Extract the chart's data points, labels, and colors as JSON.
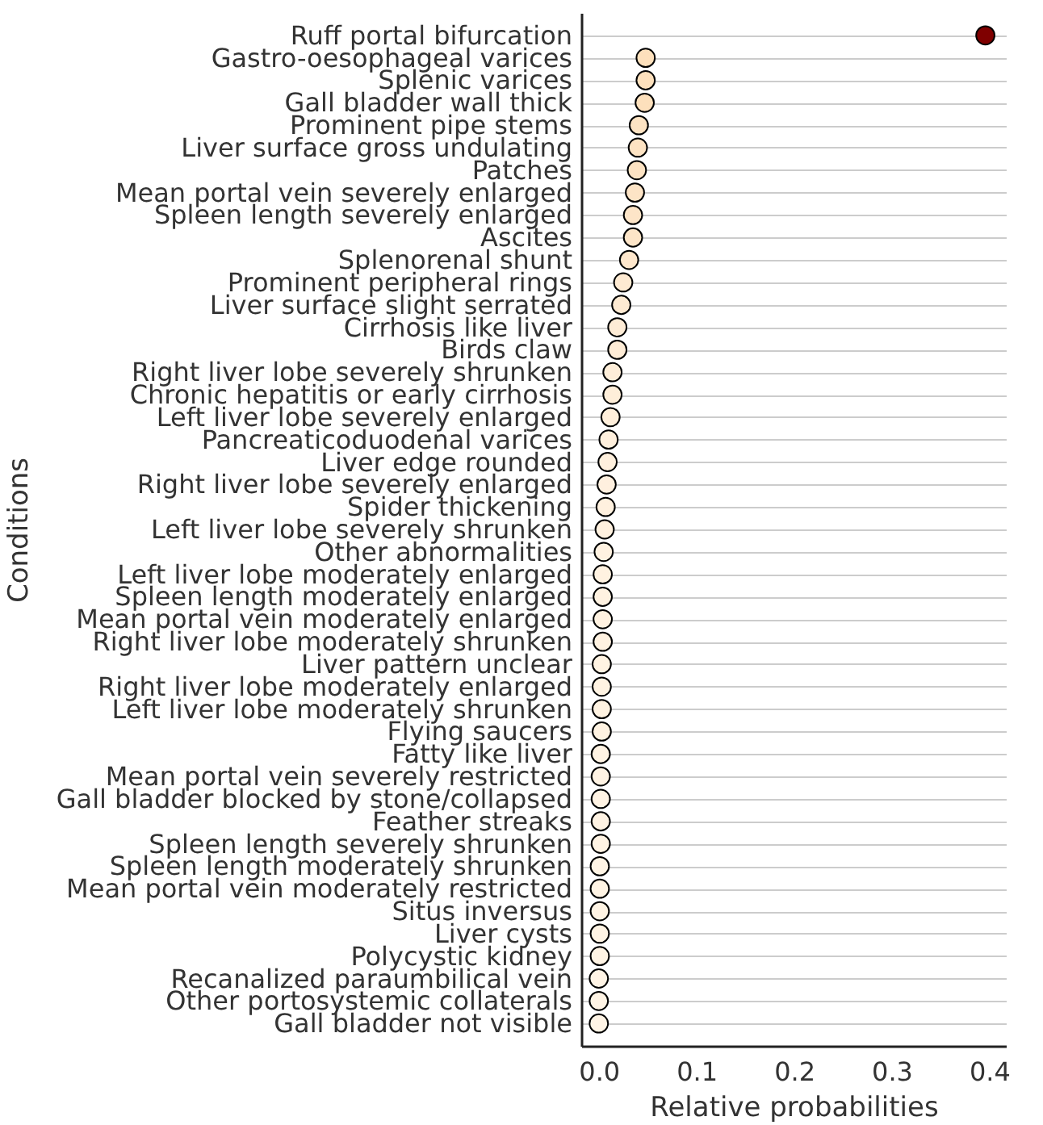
{
  "chart_data": {
    "type": "scatter",
    "xlabel": "Relative probabilities",
    "ylabel": "Conditions",
    "categories": [
      "Ruff portal bifurcation",
      "Gastro-oesophageal varices",
      "Splenic varices",
      "Gall bladder wall thick",
      "Prominent pipe stems",
      "Liver surface gross undulating",
      "Patches",
      "Mean portal vein severely enlarged",
      "Spleen length severely enlarged",
      "Ascites",
      "Splenorenal shunt",
      "Prominent peripheral rings",
      "Liver surface slight serrated",
      "Cirrhosis like liver",
      "Birds claw",
      "Right liver lobe severely shrunken",
      "Chronic hepatitis or early cirrhosis",
      "Left liver lobe severely enlarged",
      "Pancreaticoduodenal varices",
      "Liver edge rounded",
      "Right liver lobe severely enlarged",
      "Spider thickening",
      "Left liver lobe severely shrunken",
      "Other abnormalities",
      "Left liver lobe moderately enlarged",
      "Spleen length moderately enlarged",
      "Mean portal vein moderately enlarged",
      "Right liver lobe moderately shrunken",
      "Liver pattern unclear",
      "Right liver lobe moderately enlarged",
      "Left liver lobe moderately shrunken",
      "Flying saucers",
      "Fatty like liver",
      "Mean portal vein severely restricted",
      "Gall bladder blocked by stone/collapsed",
      "Feather streaks",
      "Spleen length severely shrunken",
      "Spleen length moderately shrunken",
      "Mean portal vein moderately restricted",
      "Situs inversus",
      "Liver cysts",
      "Polycystic kidney",
      "Recanalized paraumbilical vein",
      "Other portosystemic collaterals",
      "Gall bladder not visible"
    ],
    "values": [
      0.396,
      0.048,
      0.048,
      0.047,
      0.041,
      0.04,
      0.039,
      0.037,
      0.035,
      0.035,
      0.031,
      0.025,
      0.023,
      0.019,
      0.019,
      0.014,
      0.014,
      0.012,
      0.01,
      0.009,
      0.008,
      0.007,
      0.006,
      0.005,
      0.004,
      0.004,
      0.004,
      0.004,
      0.003,
      0.003,
      0.003,
      0.003,
      0.002,
      0.002,
      0.002,
      0.002,
      0.002,
      0.001,
      0.001,
      0.001,
      0.001,
      0.001,
      0.0,
      0.0,
      0.0
    ],
    "colors": [
      "#7f0000",
      "#fde0bc",
      "#fde0bc",
      "#fde0bc",
      "#fde3c3",
      "#fde3c3",
      "#fde3c3",
      "#fde4c6",
      "#fde5c8",
      "#fde5c8",
      "#fee7cc",
      "#feead2",
      "#feead2",
      "#feecd6",
      "#feecd6",
      "#feeed9",
      "#feeed9",
      "#ffefdb",
      "#fff0dd",
      "#fff0dd",
      "#fff0df",
      "#fff1df",
      "#fff1df",
      "#fff2e1",
      "#fff2e1",
      "#fff2e1",
      "#fff2e1",
      "#fff2e1",
      "#fff3e2",
      "#fff3e2",
      "#fff3e2",
      "#fff3e2",
      "#fff3e3",
      "#fff3e3",
      "#fff3e3",
      "#fff3e3",
      "#fff3e3",
      "#fff4e4",
      "#fff4e4",
      "#fff4e4",
      "#fff4e4",
      "#fff4e4",
      "#fff4e5",
      "#fff4e5",
      "#fff4e5"
    ],
    "xlim": [
      -0.018,
      0.417
    ],
    "xticks": [
      {
        "value": 0,
        "label": "0.0"
      },
      {
        "value": 0.1,
        "label": "0.1"
      },
      {
        "value": 0.2,
        "label": "0.2"
      },
      {
        "value": 0.3,
        "label": "0.3"
      },
      {
        "value": 0.4,
        "label": "0.4"
      }
    ],
    "grid": "y",
    "marker": "circle",
    "orientation": "horizontal"
  }
}
